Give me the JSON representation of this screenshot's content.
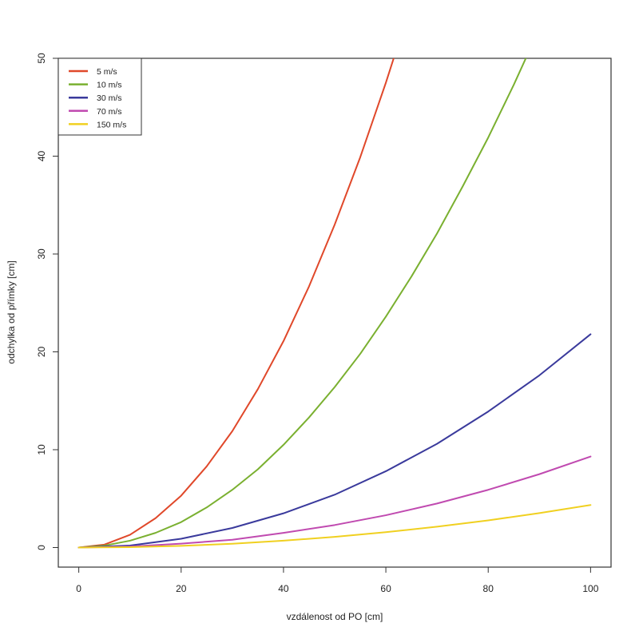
{
  "chart_data": {
    "type": "line",
    "xlabel": "vzdálenost od PO [cm]",
    "ylabel": "odchylka od přímky [cm]",
    "xlim": [
      -4,
      104
    ],
    "ylim": [
      -2,
      50
    ],
    "xticks": [
      0,
      20,
      40,
      60,
      80,
      100
    ],
    "yticks": [
      0,
      10,
      20,
      30,
      40,
      50
    ],
    "grid": false,
    "legend_position": "top-left",
    "series": [
      {
        "name": "5 m/s",
        "color": "#e0482a",
        "x": [
          0,
          5,
          10,
          15,
          20,
          25,
          30,
          35,
          40,
          45,
          50,
          55,
          60,
          63
        ],
        "y": [
          0,
          0.3,
          1.3,
          3.0,
          5.3,
          8.3,
          11.9,
          16.2,
          21.1,
          26.7,
          33.0,
          39.9,
          47.5,
          52.4
        ]
      },
      {
        "name": "10 m/s",
        "color": "#7ab030",
        "x": [
          0,
          5,
          10,
          15,
          20,
          25,
          30,
          35,
          40,
          45,
          50,
          55,
          60,
          65,
          70,
          75,
          80,
          85,
          89
        ],
        "y": [
          0,
          0.2,
          0.7,
          1.5,
          2.6,
          4.1,
          5.9,
          8.0,
          10.5,
          13.3,
          16.4,
          19.8,
          23.6,
          27.7,
          32.1,
          36.9,
          41.9,
          47.3,
          51.9
        ]
      },
      {
        "name": "30 m/s",
        "color": "#3a3a9c",
        "x": [
          0,
          10,
          20,
          30,
          40,
          50,
          60,
          70,
          80,
          90,
          100
        ],
        "y": [
          0,
          0.2,
          0.9,
          2.0,
          3.5,
          5.4,
          7.8,
          10.6,
          13.9,
          17.6,
          21.8
        ]
      },
      {
        "name": "70 m/s",
        "color": "#c04ab0",
        "x": [
          0,
          10,
          20,
          30,
          40,
          50,
          60,
          70,
          80,
          90,
          100
        ],
        "y": [
          0,
          0.1,
          0.4,
          0.8,
          1.5,
          2.3,
          3.3,
          4.5,
          5.9,
          7.5,
          9.3
        ]
      },
      {
        "name": "150 m/s",
        "color": "#f0d020",
        "x": [
          0,
          10,
          20,
          30,
          40,
          50,
          60,
          70,
          80,
          90,
          100
        ],
        "y": [
          0,
          0.04,
          0.17,
          0.39,
          0.7,
          1.09,
          1.57,
          2.13,
          2.78,
          3.52,
          4.35
        ]
      }
    ]
  }
}
